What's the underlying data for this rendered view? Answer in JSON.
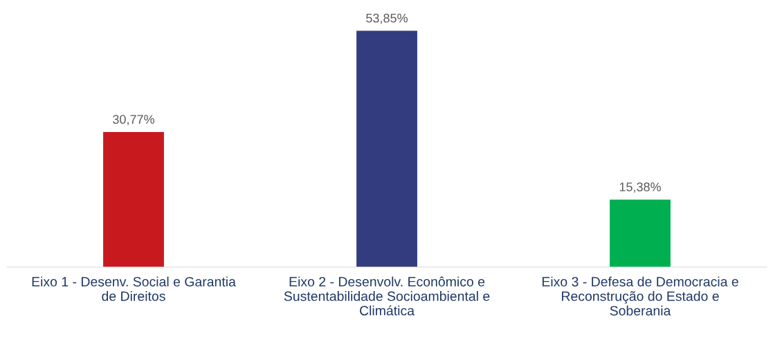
{
  "chart_data": {
    "type": "bar",
    "categories": [
      "Eixo 1 - Desenv. Social e Garantia\nde Direitos",
      "Eixo 2 - Desenvolv. Econômico e\nSustentabilidade Socioambiental e\nClimática",
      "Eixo 3 - Defesa de Democracia e\nReconstrução do Estado e\nSoberania"
    ],
    "values": [
      30.77,
      53.85,
      15.38
    ],
    "colors": [
      "#c8191f",
      "#323c7f",
      "#00b050"
    ],
    "value_labels": [
      "30,77%",
      "53,85%",
      "15,38%"
    ],
    "grid": false,
    "legend": false
  }
}
